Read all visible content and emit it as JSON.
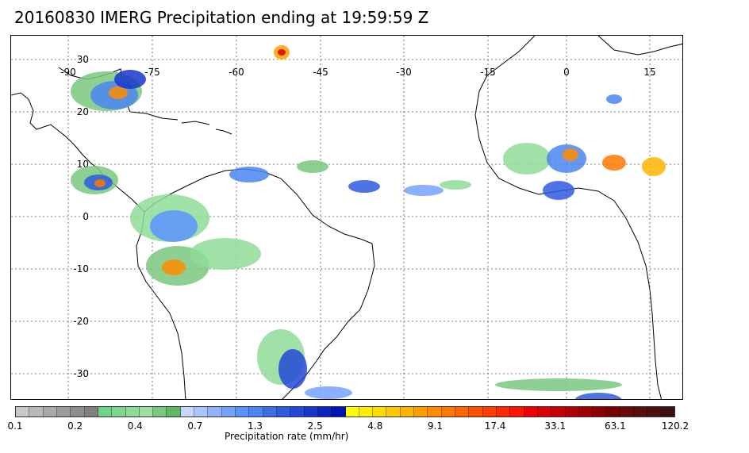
{
  "title": "20160830 IMERG Precipitation ending at 19:59:59 Z",
  "map": {
    "lon_labels": [
      "-90",
      "-75",
      "-60",
      "-45",
      "-30",
      "-15",
      "0",
      "15"
    ],
    "lat_labels": [
      "30",
      "20",
      "10",
      "0",
      "-10",
      "-20",
      "-30"
    ],
    "grid": true
  },
  "colorbar": {
    "title": "Precipitation rate (mm/hr)",
    "tick_labels": [
      "0.1",
      "0.2",
      "0.4",
      "0.7",
      "1.3",
      "2.5",
      "4.8",
      "9.1",
      "17.4",
      "33.1",
      "63.1",
      "120.2"
    ],
    "colors": [
      "#c8c8c8",
      "#b9b9b9",
      "#aaaaaa",
      "#9c9c9c",
      "#8e8e8e",
      "#808080",
      "#6fd48a",
      "#7ed78f",
      "#8fdc98",
      "#9de0a0",
      "#7ac87f",
      "#5fb865",
      "#c7d6ff",
      "#aac4ff",
      "#8fb3ff",
      "#74a3ff",
      "#5a93ff",
      "#4a86f0",
      "#3b6fe6",
      "#2e5adf",
      "#2348d6",
      "#1636cc",
      "#0b24c2",
      "#0012b8",
      "#ffff00",
      "#ffee00",
      "#ffdd00",
      "#ffc800",
      "#ffb400",
      "#ffa000",
      "#ff8c00",
      "#ff7800",
      "#ff6400",
      "#ff5000",
      "#ff3c00",
      "#ff2800",
      "#ff1400",
      "#f00000",
      "#dc0000",
      "#c80000",
      "#b40000",
      "#a00000",
      "#8c0000",
      "#7a0000",
      "#6a0a0a",
      "#5a0f0f",
      "#4b1010",
      "#3d1111"
    ]
  }
}
